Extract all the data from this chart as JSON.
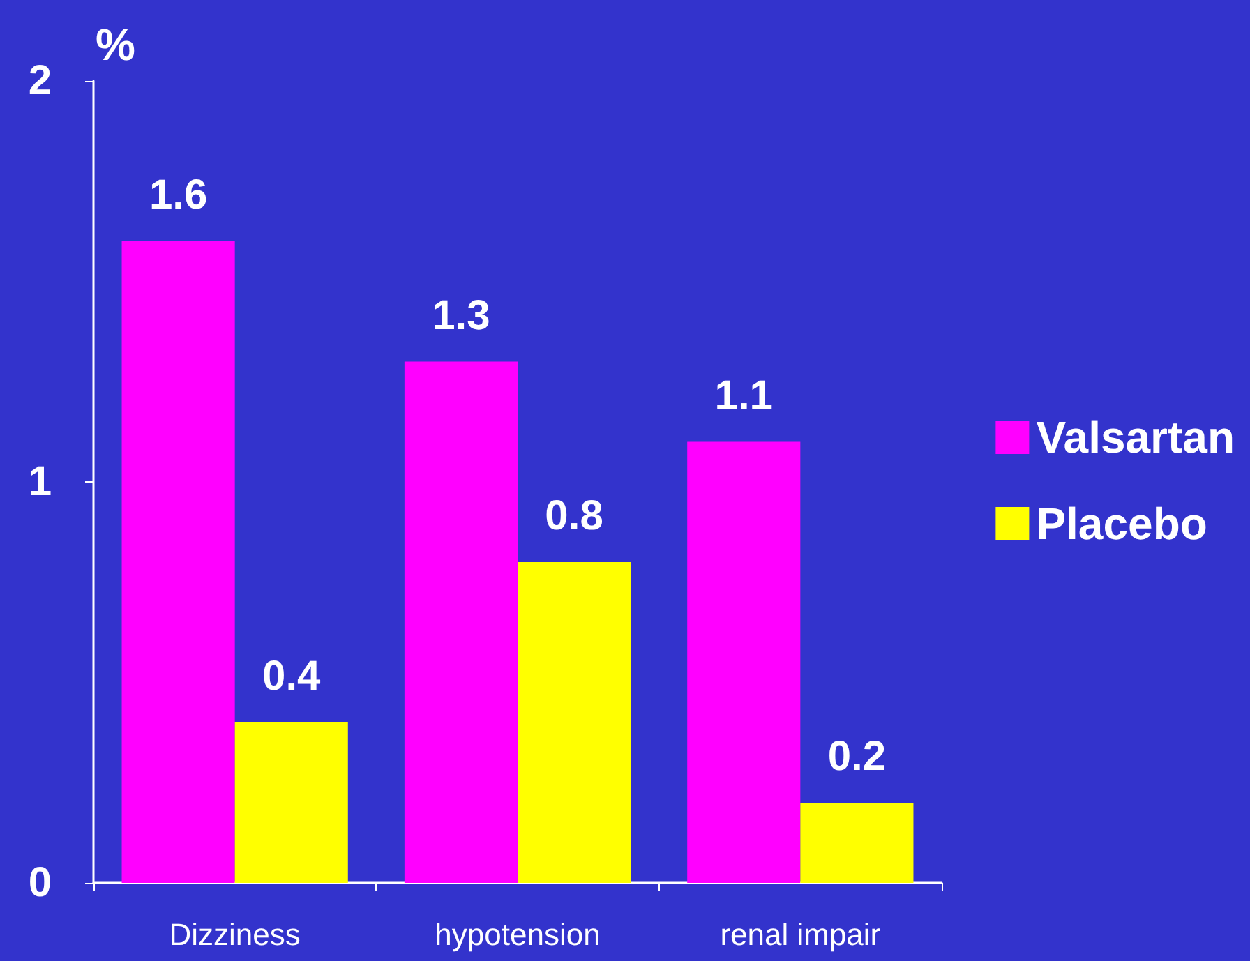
{
  "chart_data": {
    "type": "bar",
    "ylabel": "%",
    "categories": [
      "Dizziness",
      "hypotension",
      "renal impair"
    ],
    "series": [
      {
        "name": "Valsartan",
        "color": "#ff00ff",
        "values": [
          1.6,
          1.3,
          1.1
        ]
      },
      {
        "name": "Placebo",
        "color": "#ffff00",
        "values": [
          0.4,
          0.8,
          0.2
        ]
      }
    ],
    "ylim": [
      0,
      2
    ],
    "yticks": [
      0,
      1,
      2
    ],
    "data_labels": true,
    "legend": "right",
    "grid": false
  }
}
